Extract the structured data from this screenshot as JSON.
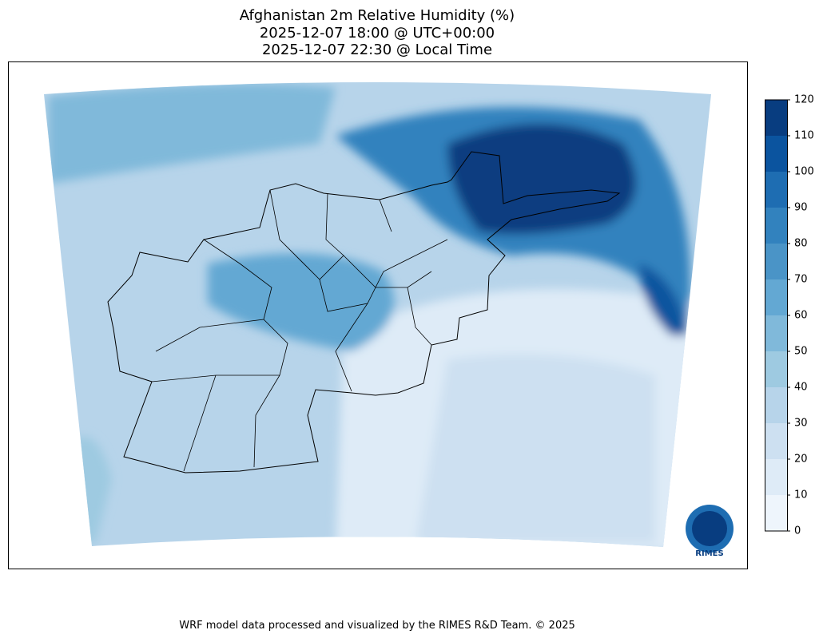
{
  "map": {
    "title": [
      "Afghanistan 2m Relative Humidity (%)",
      "2025-12-07 18:00 @ UTC+00:00",
      "2025-12-07 22:30 @ Local Time"
    ],
    "colorbar": {
      "levels": [
        0,
        10,
        20,
        30,
        40,
        50,
        60,
        70,
        80,
        90,
        100,
        110,
        120
      ],
      "colors": [
        "#eef5fc",
        "#deebf7",
        "#cde0f1",
        "#b7d4ea",
        "#9ecae1",
        "#80b9da",
        "#63a8d3",
        "#4a94c7",
        "#3282be",
        "#1e6db2",
        "#0b549f",
        "#083d80"
      ],
      "ticks": [
        0,
        10,
        20,
        30,
        40,
        50,
        60,
        70,
        80,
        90,
        100,
        110,
        120
      ]
    },
    "footer": "WRF model data processed and visualized by the RIMES R&D Team. © 2025",
    "logo": "RIMES"
  }
}
